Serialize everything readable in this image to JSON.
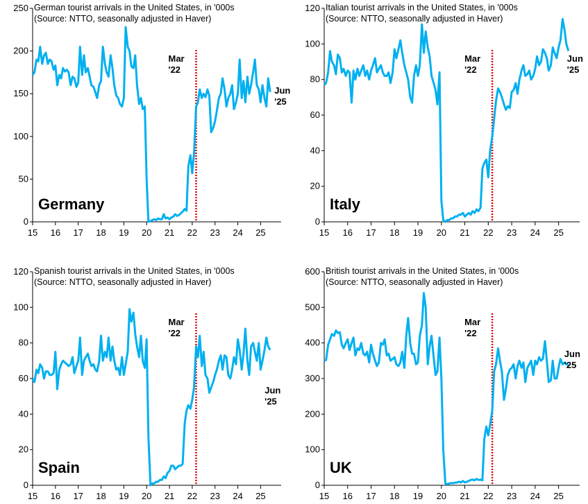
{
  "chart_data": [
    {
      "type": "line",
      "title": "German tourist arrivals in the United States, in '000s",
      "subtitle": "(Source: NTTO, seasonally adjusted in Haver)",
      "label": "Germany",
      "annotation": [
        "Mar",
        "'22"
      ],
      "vline": 22.17,
      "end_label": [
        "Jun",
        "'25"
      ],
      "color": "#00b0f0",
      "annotation_color": "#e00000",
      "xlim": [
        15,
        25.9
      ],
      "xticks": [
        15,
        16,
        17,
        18,
        19,
        20,
        21,
        22,
        23,
        24,
        25
      ],
      "ylim": [
        0,
        250
      ],
      "yticks": [
        0,
        50,
        100,
        150,
        200,
        250
      ],
      "x": [
        15,
        15.08,
        15.17,
        15.25,
        15.33,
        15.42,
        15.5,
        15.58,
        15.67,
        15.75,
        15.83,
        15.92,
        16,
        16.08,
        16.17,
        16.25,
        16.33,
        16.42,
        16.5,
        16.58,
        16.67,
        16.75,
        16.83,
        16.92,
        17,
        17.08,
        17.17,
        17.25,
        17.33,
        17.42,
        17.5,
        17.58,
        17.67,
        17.75,
        17.83,
        17.92,
        18,
        18.08,
        18.17,
        18.25,
        18.33,
        18.42,
        18.5,
        18.58,
        18.67,
        18.75,
        18.83,
        18.92,
        19,
        19.08,
        19.17,
        19.25,
        19.33,
        19.42,
        19.5,
        19.58,
        19.67,
        19.75,
        19.83,
        19.92,
        20,
        20.08,
        20.17,
        20.25,
        20.33,
        20.42,
        20.5,
        20.58,
        20.67,
        20.75,
        20.83,
        20.92,
        21,
        21.08,
        21.17,
        21.25,
        21.33,
        21.42,
        21.5,
        21.58,
        21.67,
        21.75,
        21.83,
        21.92,
        22,
        22.08,
        22.17,
        22.25,
        22.33,
        22.42,
        22.5,
        22.58,
        22.67,
        22.75,
        22.83,
        22.92,
        23,
        23.08,
        23.17,
        23.25,
        23.33,
        23.42,
        23.5,
        23.58,
        23.67,
        23.75,
        23.83,
        23.92,
        24,
        24.08,
        24.17,
        24.25,
        24.33,
        24.42,
        24.5,
        24.58,
        24.67,
        24.75,
        24.83,
        24.92,
        25,
        25.08,
        25.17,
        25.25,
        25.33,
        25.42
      ],
      "values": [
        172,
        175,
        190,
        188,
        205,
        185,
        195,
        198,
        185,
        190,
        188,
        178,
        183,
        160,
        172,
        168,
        180,
        176,
        178,
        175,
        160,
        170,
        168,
        158,
        163,
        205,
        172,
        195,
        175,
        180,
        170,
        160,
        158,
        152,
        145,
        160,
        165,
        205,
        185,
        175,
        170,
        195,
        180,
        160,
        148,
        145,
        138,
        135,
        145,
        228,
        205,
        200,
        182,
        180,
        195,
        160,
        138,
        145,
        132,
        135,
        50,
        0,
        1,
        2,
        3,
        2,
        4,
        3,
        3,
        9,
        4,
        5,
        3,
        5,
        6,
        9,
        7,
        8,
        10,
        12,
        15,
        13,
        65,
        78,
        57,
        80,
        135,
        140,
        155,
        145,
        150,
        146,
        155,
        148,
        105,
        110,
        118,
        130,
        145,
        150,
        168,
        155,
        135,
        145,
        150,
        160,
        132,
        140,
        150,
        190,
        145,
        165,
        140,
        170,
        150,
        160,
        175,
        190,
        160,
        155,
        140,
        160,
        145,
        135,
        168,
        152
      ]
    },
    {
      "type": "line",
      "title": "Italian tourist arrivals in the United States, in '000s",
      "subtitle": "(Source: NTTO, seasonally adjusted in Haver)",
      "label": "Italy",
      "annotation": [
        "Mar",
        "'22"
      ],
      "vline": 22.17,
      "end_label": [
        "Jun",
        "'25"
      ],
      "color": "#00b0f0",
      "annotation_color": "#e00000",
      "xlim": [
        15,
        25.9
      ],
      "xticks": [
        15,
        16,
        17,
        18,
        19,
        20,
        21,
        22,
        23,
        24,
        25
      ],
      "ylim": [
        0,
        120
      ],
      "yticks": [
        0,
        20,
        40,
        60,
        80,
        100,
        120
      ],
      "x": [
        15,
        15.08,
        15.17,
        15.25,
        15.33,
        15.42,
        15.5,
        15.58,
        15.67,
        15.75,
        15.83,
        15.92,
        16,
        16.08,
        16.17,
        16.25,
        16.33,
        16.42,
        16.5,
        16.58,
        16.67,
        16.75,
        16.83,
        16.92,
        17,
        17.08,
        17.17,
        17.25,
        17.33,
        17.42,
        17.5,
        17.58,
        17.67,
        17.75,
        17.83,
        17.92,
        18,
        18.08,
        18.17,
        18.25,
        18.33,
        18.42,
        18.5,
        18.58,
        18.67,
        18.75,
        18.83,
        18.92,
        19,
        19.08,
        19.17,
        19.25,
        19.33,
        19.42,
        19.5,
        19.58,
        19.67,
        19.75,
        19.83,
        19.92,
        20,
        20.08,
        20.17,
        20.25,
        20.33,
        20.42,
        20.5,
        20.58,
        20.67,
        20.75,
        20.83,
        20.92,
        21,
        21.08,
        21.17,
        21.25,
        21.33,
        21.42,
        21.5,
        21.58,
        21.67,
        21.75,
        21.83,
        21.92,
        22,
        22.08,
        22.17,
        22.25,
        22.33,
        22.42,
        22.5,
        22.58,
        22.67,
        22.75,
        22.83,
        22.92,
        23,
        23.08,
        23.17,
        23.25,
        23.33,
        23.42,
        23.5,
        23.58,
        23.67,
        23.75,
        23.83,
        23.92,
        24,
        24.08,
        24.17,
        24.25,
        24.33,
        24.42,
        24.5,
        24.58,
        24.67,
        24.75,
        24.83,
        24.92,
        25,
        25.08,
        25.17,
        25.25,
        25.33,
        25.42
      ],
      "values": [
        77,
        78,
        84,
        96,
        90,
        88,
        83,
        94,
        92,
        84,
        86,
        82,
        85,
        84,
        67,
        85,
        80,
        86,
        82,
        85,
        88,
        82,
        85,
        80,
        85,
        88,
        92,
        84,
        86,
        88,
        84,
        82,
        82,
        84,
        78,
        84,
        97,
        92,
        97,
        102,
        95,
        88,
        84,
        80,
        70,
        67,
        82,
        88,
        82,
        88,
        111,
        95,
        107,
        98,
        93,
        82,
        78,
        74,
        66,
        84,
        12,
        1,
        0,
        1,
        1,
        2,
        2,
        3,
        3,
        4,
        4,
        5,
        3,
        4,
        5,
        4,
        6,
        5,
        7,
        6,
        8,
        30,
        33,
        35,
        25,
        40,
        48,
        58,
        68,
        75,
        73,
        70,
        66,
        63,
        65,
        64,
        73,
        74,
        78,
        72,
        80,
        85,
        88,
        82,
        83,
        85,
        80,
        82,
        86,
        93,
        88,
        90,
        97,
        95,
        92,
        85,
        88,
        98,
        95,
        92,
        98,
        102,
        114,
        108,
        100,
        96
      ]
    },
    {
      "type": "line",
      "title": "Spanish tourist arrivals in the United States, in '000s",
      "subtitle": "(Source: NTTO, seasonally adjusted in Haver)",
      "label": "Spain",
      "annotation": [
        "Mar",
        "'22"
      ],
      "vline": 22.17,
      "end_label": [
        "Jun",
        "'25"
      ],
      "color": "#00b0f0",
      "annotation_color": "#e00000",
      "xlim": [
        15,
        25.9
      ],
      "xticks": [
        15,
        16,
        17,
        18,
        19,
        20,
        21,
        22,
        23,
        24,
        25
      ],
      "ylim": [
        0,
        120
      ],
      "yticks": [
        0,
        20,
        40,
        60,
        80,
        100,
        120
      ],
      "x": [
        15,
        15.08,
        15.17,
        15.25,
        15.33,
        15.42,
        15.5,
        15.58,
        15.67,
        15.75,
        15.83,
        15.92,
        16,
        16.08,
        16.17,
        16.25,
        16.33,
        16.42,
        16.5,
        16.58,
        16.67,
        16.75,
        16.83,
        16.92,
        17,
        17.08,
        17.17,
        17.25,
        17.33,
        17.42,
        17.5,
        17.58,
        17.67,
        17.75,
        17.83,
        17.92,
        18,
        18.08,
        18.17,
        18.25,
        18.33,
        18.42,
        18.5,
        18.58,
        18.67,
        18.75,
        18.83,
        18.92,
        19,
        19.08,
        19.17,
        19.25,
        19.33,
        19.42,
        19.5,
        19.58,
        19.67,
        19.75,
        19.83,
        19.92,
        20,
        20.08,
        20.17,
        20.25,
        20.33,
        20.42,
        20.5,
        20.58,
        20.67,
        20.75,
        20.83,
        20.92,
        21,
        21.08,
        21.17,
        21.25,
        21.33,
        21.42,
        21.5,
        21.58,
        21.67,
        21.75,
        21.83,
        21.92,
        22,
        22.08,
        22.17,
        22.25,
        22.33,
        22.42,
        22.5,
        22.58,
        22.67,
        22.75,
        22.83,
        22.92,
        23,
        23.08,
        23.17,
        23.25,
        23.33,
        23.42,
        23.5,
        23.58,
        23.67,
        23.75,
        23.83,
        23.92,
        24,
        24.08,
        24.17,
        24.25,
        24.33,
        24.42,
        24.5,
        24.58,
        24.67,
        24.75,
        24.83,
        24.92,
        25,
        25.08,
        25.17,
        25.25,
        25.33,
        25.42
      ],
      "values": [
        60,
        58,
        65,
        63,
        68,
        66,
        60,
        64,
        64,
        62,
        62,
        63,
        75,
        54,
        65,
        68,
        70,
        69,
        68,
        67,
        68,
        72,
        63,
        67,
        70,
        83,
        62,
        70,
        72,
        74,
        70,
        67,
        68,
        65,
        64,
        70,
        84,
        70,
        75,
        72,
        83,
        70,
        78,
        70,
        65,
        66,
        62,
        72,
        62,
        68,
        75,
        99,
        92,
        97,
        85,
        78,
        72,
        84,
        70,
        66,
        82,
        27,
        0,
        1,
        1,
        2,
        2,
        3,
        3,
        5,
        4,
        7,
        8,
        11,
        11,
        9,
        10,
        11,
        11,
        12,
        35,
        42,
        45,
        43,
        48,
        55,
        78,
        72,
        84,
        67,
        75,
        62,
        60,
        52,
        55,
        58,
        62,
        65,
        70,
        73,
        65,
        73,
        72,
        62,
        60,
        65,
        72,
        68,
        82,
        76,
        65,
        74,
        88,
        70,
        62,
        78,
        80,
        75,
        70,
        80,
        65,
        70,
        76,
        83,
        78,
        76
      ]
    },
    {
      "type": "line",
      "title": "British tourist arrivals in the United States, in '000s",
      "subtitle": "(Source: NTTO, seasonally adjusted in Haver)",
      "label": "UK",
      "annotation": [
        "Mar",
        "'22"
      ],
      "vline": 22.17,
      "end_label": [
        "Jun",
        "'25"
      ],
      "color": "#00b0f0",
      "annotation_color": "#e00000",
      "xlim": [
        15,
        25.9
      ],
      "xticks": [
        15,
        16,
        17,
        18,
        19,
        20,
        21,
        22,
        23,
        24,
        25
      ],
      "ylim": [
        0,
        600
      ],
      "yticks": [
        0,
        100,
        200,
        300,
        400,
        500,
        600
      ],
      "x": [
        15,
        15.08,
        15.17,
        15.25,
        15.33,
        15.42,
        15.5,
        15.58,
        15.67,
        15.75,
        15.83,
        15.92,
        16,
        16.08,
        16.17,
        16.25,
        16.33,
        16.42,
        16.5,
        16.58,
        16.67,
        16.75,
        16.83,
        16.92,
        17,
        17.08,
        17.17,
        17.25,
        17.33,
        17.42,
        17.5,
        17.58,
        17.67,
        17.75,
        17.83,
        17.92,
        18,
        18.08,
        18.17,
        18.25,
        18.33,
        18.42,
        18.5,
        18.58,
        18.67,
        18.75,
        18.83,
        18.92,
        19,
        19.08,
        19.17,
        19.25,
        19.33,
        19.42,
        19.5,
        19.58,
        19.67,
        19.75,
        19.83,
        19.92,
        20,
        20.08,
        20.17,
        20.25,
        20.33,
        20.42,
        20.5,
        20.58,
        20.67,
        20.75,
        20.83,
        20.92,
        21,
        21.08,
        21.17,
        21.25,
        21.33,
        21.42,
        21.5,
        21.58,
        21.67,
        21.75,
        21.83,
        21.92,
        22,
        22.08,
        22.17,
        22.25,
        22.33,
        22.42,
        22.5,
        22.58,
        22.67,
        22.75,
        22.83,
        22.92,
        23,
        23.08,
        23.17,
        23.25,
        23.33,
        23.42,
        23.5,
        23.58,
        23.67,
        23.75,
        23.83,
        23.92,
        24,
        24.08,
        24.17,
        24.25,
        24.33,
        24.42,
        24.5,
        24.58,
        24.67,
        24.75,
        24.83,
        24.92,
        25,
        25.08,
        25.17,
        25.25,
        25.33,
        25.42
      ],
      "values": [
        350,
        352,
        395,
        410,
        425,
        420,
        435,
        428,
        430,
        395,
        385,
        400,
        410,
        380,
        400,
        415,
        365,
        385,
        380,
        400,
        370,
        365,
        375,
        345,
        395,
        370,
        350,
        335,
        345,
        400,
        395,
        410,
        365,
        370,
        350,
        355,
        360,
        340,
        335,
        345,
        375,
        330,
        420,
        470,
        400,
        370,
        370,
        340,
        345,
        420,
        450,
        540,
        500,
        340,
        390,
        420,
        360,
        310,
        320,
        415,
        300,
        100,
        5,
        3,
        5,
        6,
        6,
        7,
        8,
        10,
        8,
        12,
        8,
        10,
        12,
        15,
        16,
        14,
        18,
        15,
        16,
        14,
        130,
        165,
        140,
        170,
        210,
        320,
        340,
        385,
        350,
        320,
        240,
        270,
        310,
        325,
        330,
        340,
        300,
        335,
        350,
        330,
        345,
        290,
        330,
        340,
        350,
        310,
        350,
        340,
        360,
        350,
        355,
        405,
        350,
        290,
        295,
        350,
        300,
        300,
        330,
        355,
        340,
        345,
        340,
        338
      ]
    }
  ]
}
